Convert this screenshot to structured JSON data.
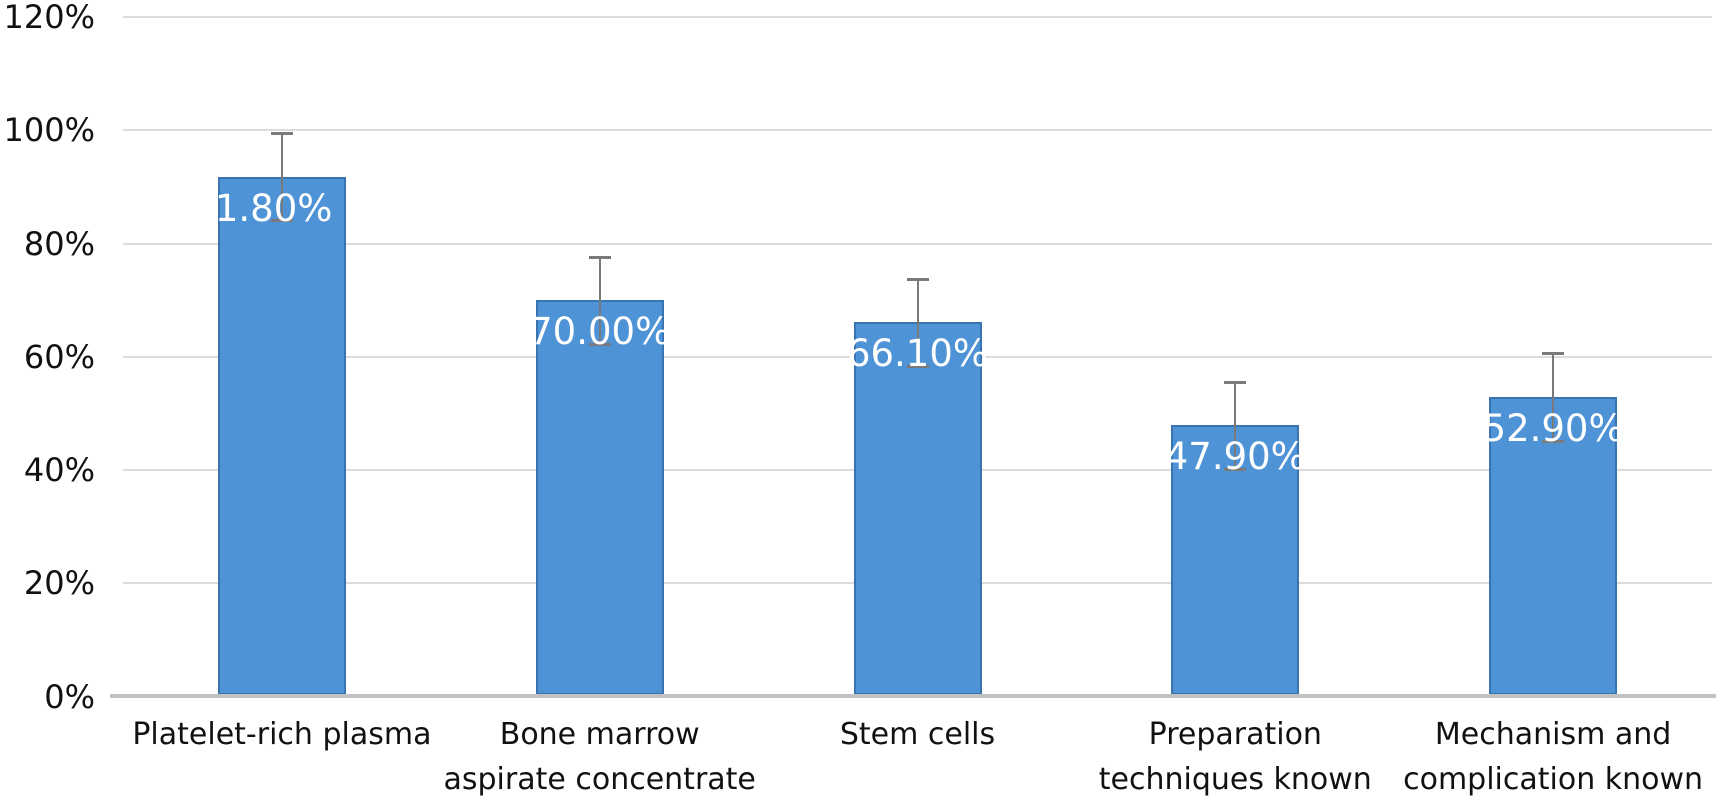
{
  "chart_data": {
    "type": "bar",
    "title": "",
    "xlabel": "",
    "ylabel": "",
    "categories": [
      "Platelet-rich plasma",
      "Bone marrow aspirate concentrate",
      "Stem cells",
      "Preparation techniques known",
      "Mechanism and complication known"
    ],
    "values": [
      91.8,
      70.0,
      66.1,
      47.9,
      52.9
    ],
    "data_labels": [
      "91.80%",
      "70.00%",
      "66.10%",
      "47.90%",
      "52.90%"
    ],
    "error_plus": [
      7.7,
      7.7,
      7.7,
      7.7,
      7.7
    ],
    "error_minus": [
      7.7,
      7.7,
      7.7,
      7.7,
      7.7
    ],
    "ylim": [
      0,
      120
    ],
    "ytick_step": 20,
    "ytick_labels": [
      "0%",
      "20%",
      "40%",
      "60%",
      "80%",
      "100%",
      "120%"
    ],
    "grid": true,
    "legend": false,
    "colors": {
      "bar_fill": "#4E93D6",
      "bar_border": "#3A74B0",
      "error_bar": "#7A7A7A",
      "gridline": "#DCDCDC",
      "axis_line": "#C2C2C2",
      "data_label_text": "#FFFFFF",
      "axis_text": "#111111"
    }
  }
}
